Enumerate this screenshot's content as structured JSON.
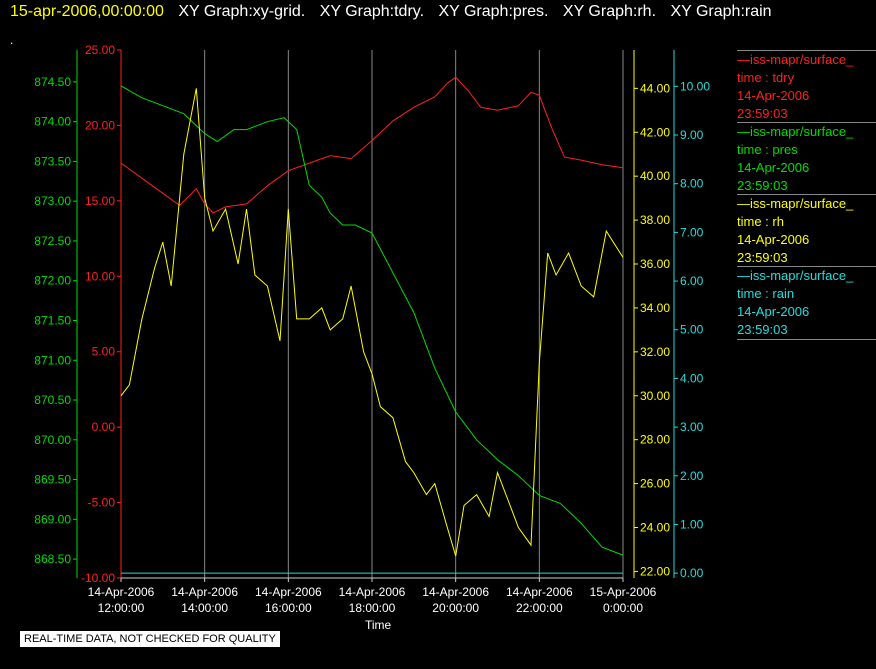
{
  "header": {
    "date": "15-apr-2006,00:00:00",
    "segments": [
      "XY Graph:xy-grid.",
      "XY Graph:tdry.",
      "XY Graph:pres.",
      "XY Graph:rh.",
      "XY Graph:rain"
    ],
    "dot": "."
  },
  "legend": [
    {
      "key": "tdry",
      "series": "iss-mapr/surface_",
      "label": "time : tdry",
      "date": "14-Apr-2006",
      "time": "23:59:03",
      "color": "#ff2020"
    },
    {
      "key": "pres",
      "series": "iss-mapr/surface_",
      "label": "time : pres",
      "date": "14-Apr-2006",
      "time": "23:59:03",
      "color": "#00dd00"
    },
    {
      "key": "rh",
      "series": "iss-mapr/surface_",
      "label": "time : rh",
      "date": "14-Apr-2006",
      "time": "23:59:03",
      "color": "#ffff00"
    },
    {
      "key": "rain",
      "series": "iss-mapr/surface_",
      "label": "time : rain",
      "date": "14-Apr-2006",
      "time": "23:59:03",
      "color": "#22dddd"
    }
  ],
  "footer_note": "REAL-TIME DATA, NOT CHECKED FOR QUALITY",
  "chart_data": {
    "type": "line",
    "xlabel": "Time",
    "x_ticks": [
      {
        "date": "14-Apr-2006",
        "time": "12:00:00",
        "hour": 12
      },
      {
        "date": "14-Apr-2006",
        "time": "14:00:00",
        "hour": 14
      },
      {
        "date": "14-Apr-2006",
        "time": "16:00:00",
        "hour": 16
      },
      {
        "date": "14-Apr-2006",
        "time": "18:00:00",
        "hour": 18
      },
      {
        "date": "14-Apr-2006",
        "time": "20:00:00",
        "hour": 20
      },
      {
        "date": "14-Apr-2006",
        "time": "22:00:00",
        "hour": 22
      },
      {
        "date": "15-Apr-2006",
        "time": "0:00:00",
        "hour": 24
      }
    ],
    "xlim_hours": [
      12,
      24
    ],
    "grid": "vertical",
    "axes": {
      "pres": {
        "color": "#00dd00",
        "ylim": [
          868.3,
          874.75
        ],
        "ticks": [
          "868.50",
          "869.00",
          "869.50",
          "870.00",
          "870.50",
          "871.00",
          "871.50",
          "872.00",
          "872.50",
          "873.00",
          "873.50",
          "874.00",
          "874.50"
        ]
      },
      "tdry": {
        "color": "#ff2020",
        "ylim": [
          -10.0,
          25.0
        ],
        "ticks": [
          "-10.00",
          "-5.00",
          "0.00",
          "5.00",
          "10.00",
          "15.00",
          "20.00",
          "25.00"
        ]
      },
      "rh": {
        "color": "#ffff00",
        "ylim": [
          21.7,
          45.2
        ],
        "ticks": [
          "22.00",
          "24.00",
          "26.00",
          "28.00",
          "30.00",
          "32.00",
          "34.00",
          "36.00",
          "38.00",
          "40.00",
          "42.00",
          "44.00"
        ]
      },
      "rain": {
        "color": "#22dddd",
        "ylim": [
          -0.1,
          10.5
        ],
        "ticks": [
          "0.00",
          "1.00",
          "2.00",
          "3.00",
          "4.00",
          "5.00",
          "6.00",
          "7.00",
          "8.00",
          "9.00",
          "10.00"
        ]
      }
    },
    "series": [
      {
        "name": "tdry",
        "axis": "tdry",
        "color": "#ff2020",
        "x": [
          12.0,
          12.5,
          13.0,
          13.4,
          13.8,
          14.0,
          14.2,
          14.5,
          15.0,
          15.5,
          16.0,
          16.5,
          17.0,
          17.5,
          18.0,
          18.5,
          19.0,
          19.5,
          19.8,
          20.0,
          20.3,
          20.6,
          21.0,
          21.5,
          21.8,
          22.0,
          22.3,
          22.6,
          23.0,
          23.5,
          24.0
        ],
        "y": [
          17.5,
          16.5,
          15.5,
          14.7,
          15.8,
          14.8,
          14.2,
          14.6,
          14.8,
          16.0,
          17.0,
          17.5,
          18.0,
          17.8,
          19.0,
          20.3,
          21.2,
          21.9,
          22.8,
          23.2,
          22.3,
          21.2,
          21.0,
          21.3,
          22.2,
          22.0,
          19.8,
          17.9,
          17.7,
          17.4,
          17.2
        ]
      },
      {
        "name": "pres",
        "axis": "pres",
        "color": "#00dd00",
        "x": [
          12.0,
          12.5,
          13.0,
          13.5,
          13.8,
          14.0,
          14.3,
          14.7,
          15.0,
          15.5,
          15.9,
          16.2,
          16.5,
          16.8,
          17.0,
          17.3,
          17.6,
          18.0,
          18.5,
          19.0,
          19.5,
          20.0,
          20.5,
          21.0,
          21.5,
          22.0,
          22.5,
          23.0,
          23.5,
          24.0
        ],
        "y": [
          874.45,
          874.3,
          874.2,
          874.1,
          873.95,
          873.85,
          873.75,
          873.9,
          873.9,
          874.0,
          874.05,
          873.9,
          873.2,
          873.05,
          872.85,
          872.7,
          872.7,
          872.6,
          872.1,
          871.6,
          870.9,
          870.35,
          870.0,
          869.75,
          869.55,
          869.3,
          869.2,
          868.95,
          868.65,
          868.55
        ]
      },
      {
        "name": "rh",
        "axis": "rh",
        "color": "#ffff00",
        "x": [
          12.0,
          12.2,
          12.5,
          12.8,
          13.0,
          13.2,
          13.5,
          13.8,
          14.0,
          14.2,
          14.5,
          14.8,
          15.0,
          15.2,
          15.5,
          15.8,
          16.0,
          16.2,
          16.5,
          16.8,
          17.0,
          17.3,
          17.5,
          17.8,
          18.0,
          18.2,
          18.5,
          18.8,
          19.0,
          19.3,
          19.5,
          19.8,
          20.0,
          20.2,
          20.5,
          20.8,
          21.0,
          21.3,
          21.5,
          21.8,
          22.0,
          22.2,
          22.4,
          22.7,
          23.0,
          23.3,
          23.6,
          24.0
        ],
        "y": [
          30.0,
          30.5,
          33.5,
          35.8,
          37.0,
          35.0,
          41.0,
          44.0,
          39.0,
          37.5,
          38.5,
          36.0,
          38.5,
          35.5,
          35.0,
          32.5,
          38.5,
          33.5,
          33.5,
          34.0,
          33.0,
          33.5,
          35.0,
          32.0,
          31.0,
          29.5,
          29.0,
          27.0,
          26.5,
          25.5,
          26.0,
          24.0,
          22.7,
          25.0,
          25.5,
          24.5,
          26.5,
          25.0,
          24.0,
          23.2,
          31.5,
          36.5,
          35.5,
          36.5,
          35.0,
          34.5,
          37.5,
          36.3
        ]
      },
      {
        "name": "rain",
        "axis": "rain",
        "color": "#22dddd",
        "x": [
          12.0,
          24.0
        ],
        "y": [
          0.0,
          0.0
        ]
      }
    ]
  }
}
